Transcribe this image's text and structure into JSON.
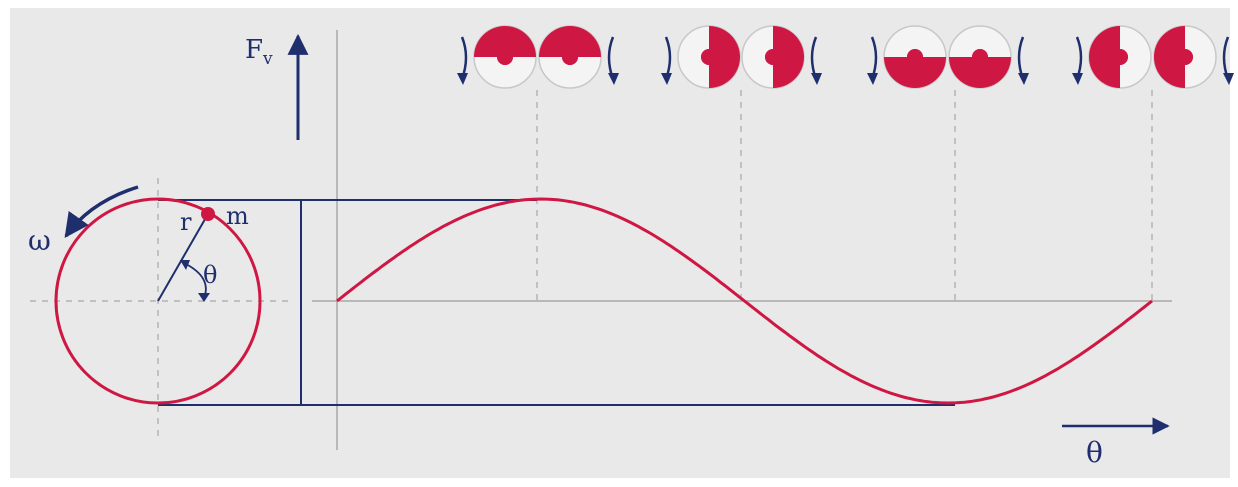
{
  "labels": {
    "force_axis": "F",
    "force_axis_subscript": "v",
    "angle_axis": "θ",
    "radius": "r",
    "mass": "m",
    "angular_velocity": "ω",
    "angle": "θ"
  },
  "colors": {
    "background": "#e9e9e9",
    "curve": "#cf1743",
    "axis": "#1f2f6e",
    "guide": "#a8a8a8",
    "disc_outline": "#c8c8c8"
  },
  "icons": [
    "rotating-unbalance-pair-top",
    "rotating-unbalance-pair-right",
    "rotating-unbalance-pair-bottom",
    "rotating-unbalance-pair-left"
  ]
}
